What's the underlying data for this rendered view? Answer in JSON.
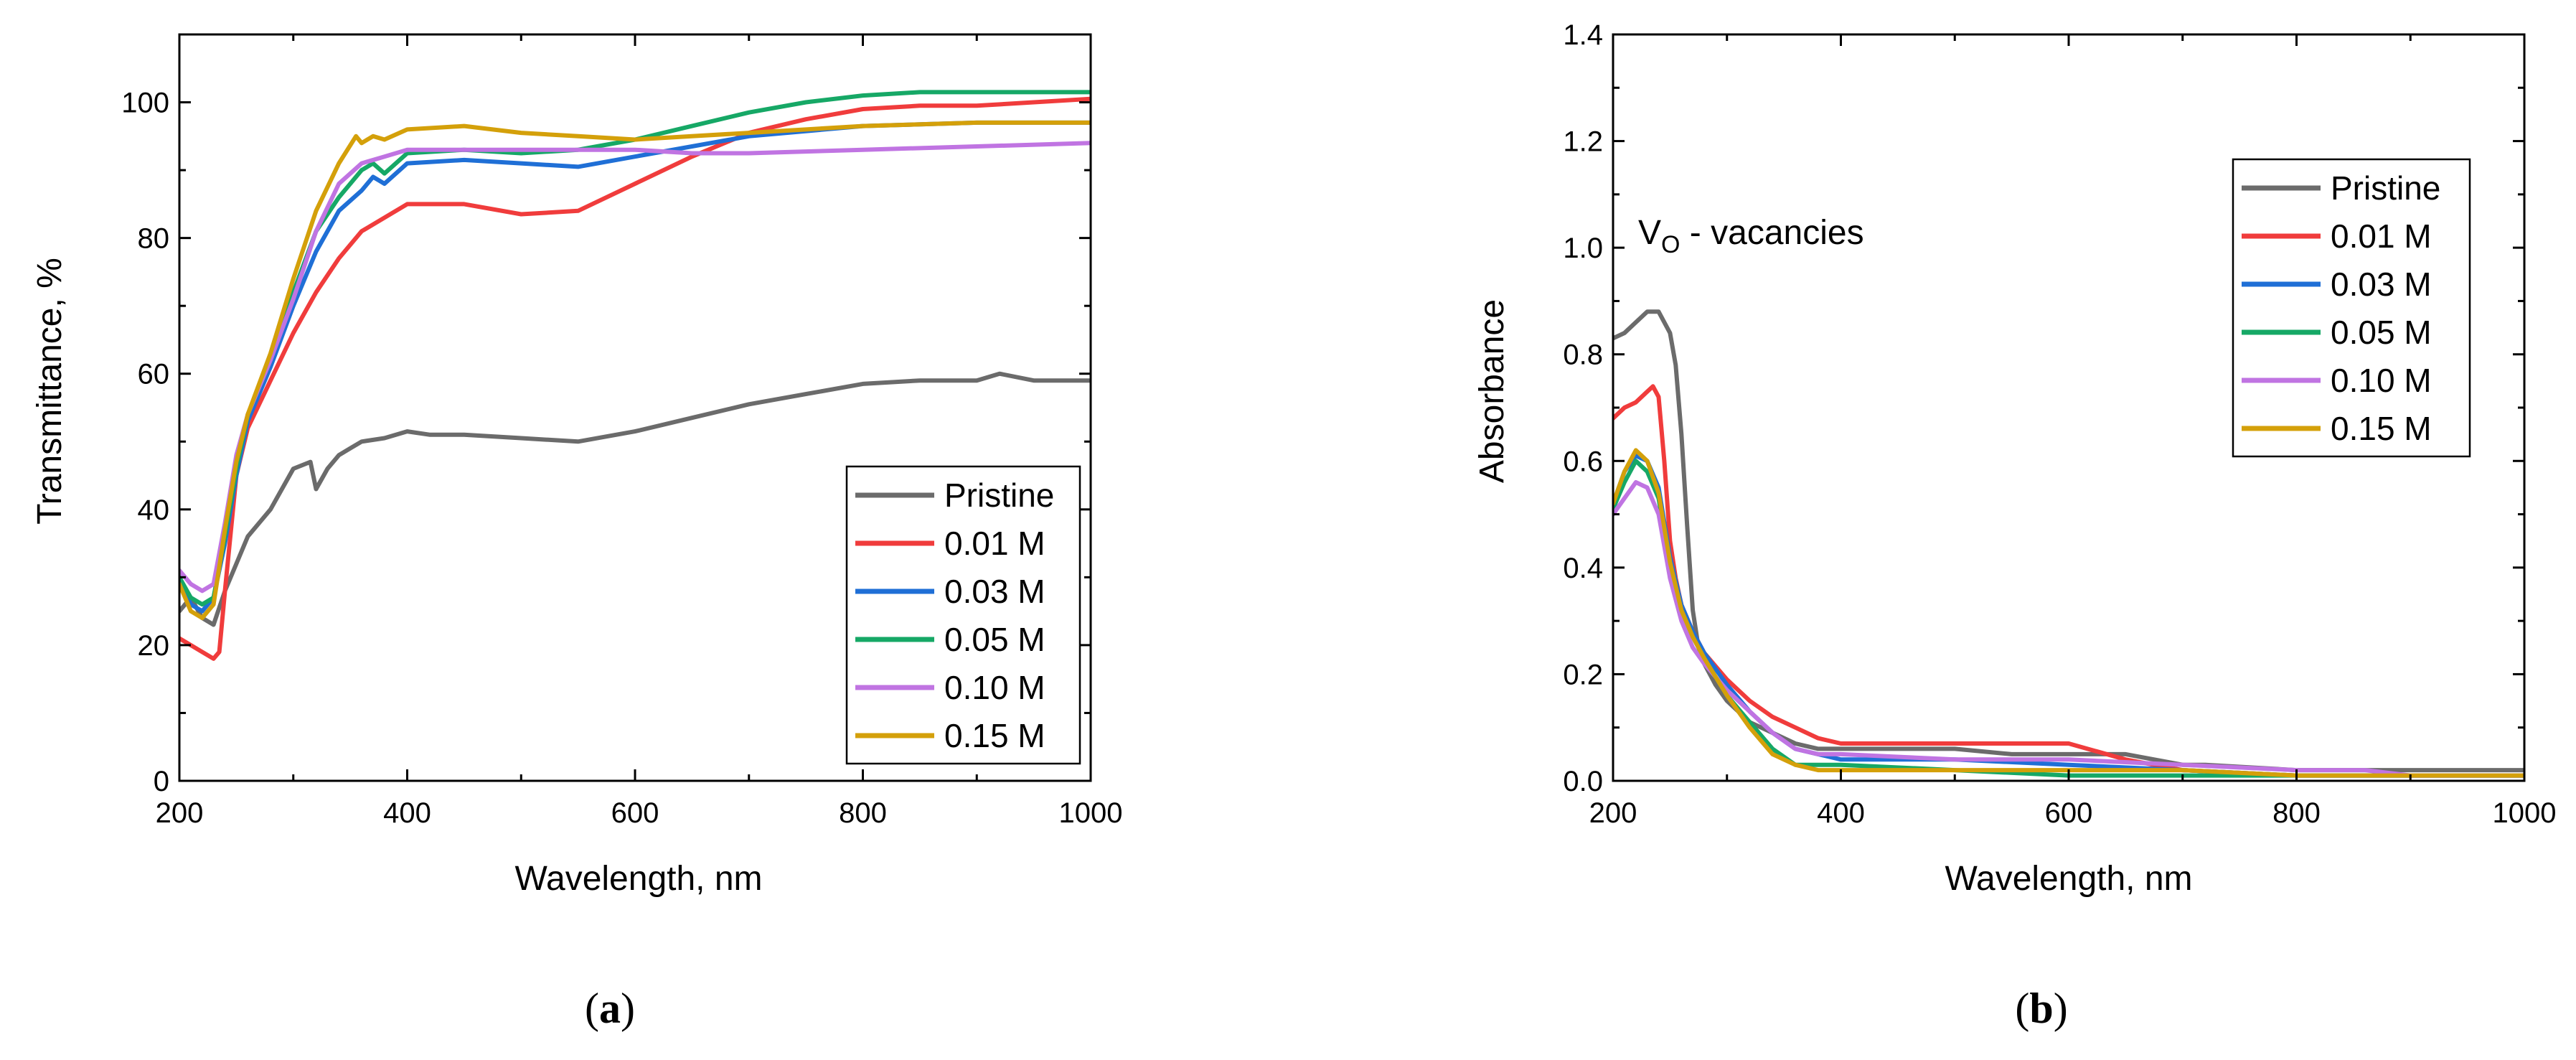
{
  "chart_data": [
    {
      "type": "line",
      "panel_label": "(a)",
      "panel_label_parts": {
        "open": "(",
        "letter": "a",
        "close": ")"
      },
      "title": "",
      "xlabel": "Wavelength, nm",
      "ylabel": "Transmittance, %",
      "xlim": [
        200,
        1000
      ],
      "ylim": [
        0,
        110
      ],
      "xticks": [
        "200",
        "400",
        "600",
        "800",
        "1000"
      ],
      "yticks": [
        "0",
        "20",
        "40",
        "60",
        "80",
        "100"
      ],
      "legend_position": "bottom-right",
      "series": [
        {
          "name": "Pristine",
          "color": "#6b6b6b",
          "x": [
            200,
            210,
            220,
            230,
            240,
            250,
            260,
            280,
            300,
            315,
            320,
            330,
            340,
            350,
            360,
            380,
            400,
            420,
            450,
            500,
            550,
            600,
            650,
            700,
            750,
            800,
            850,
            900,
            920,
            950,
            1000
          ],
          "y": [
            25,
            27,
            24,
            23,
            28,
            32,
            36,
            40,
            46,
            47,
            43,
            46,
            48,
            49,
            50,
            50.5,
            51.5,
            51,
            51,
            50.5,
            50,
            51.5,
            53.5,
            55.5,
            57,
            58.5,
            59,
            59,
            60,
            59,
            59
          ]
        },
        {
          "name": "0.01 M",
          "color": "#f03c3c",
          "x": [
            200,
            210,
            220,
            230,
            235,
            240,
            250,
            260,
            280,
            300,
            320,
            340,
            360,
            380,
            400,
            420,
            450,
            500,
            550,
            600,
            650,
            700,
            750,
            800,
            850,
            900,
            950,
            1000
          ],
          "y": [
            21,
            20,
            19,
            18,
            19,
            28,
            45,
            52,
            59,
            66,
            72,
            77,
            81,
            83,
            85,
            85,
            85,
            83.5,
            84,
            88,
            92,
            95.5,
            97.5,
            99,
            99.5,
            99.5,
            100,
            100.5
          ]
        },
        {
          "name": "0.03 M",
          "color": "#1f6fd6",
          "x": [
            200,
            210,
            220,
            230,
            240,
            250,
            260,
            280,
            300,
            320,
            340,
            360,
            370,
            380,
            400,
            450,
            500,
            550,
            600,
            650,
            700,
            800,
            900,
            1000
          ],
          "y": [
            30,
            26,
            25,
            27,
            35,
            45,
            53,
            61,
            70,
            78,
            84,
            87,
            89,
            88,
            91,
            91.5,
            91,
            90.5,
            92,
            93.5,
            95,
            96.5,
            97,
            97
          ]
        },
        {
          "name": "0.05 M",
          "color": "#16a866",
          "x": [
            200,
            210,
            220,
            230,
            240,
            250,
            260,
            280,
            300,
            320,
            340,
            360,
            370,
            380,
            400,
            450,
            500,
            550,
            600,
            650,
            700,
            750,
            800,
            850,
            900,
            1000
          ],
          "y": [
            30,
            27,
            26,
            27,
            36,
            46,
            54,
            62,
            72,
            81,
            86,
            90,
            91,
            89.5,
            92.5,
            93,
            92.5,
            93,
            94.5,
            96.5,
            98.5,
            100,
            101,
            101.5,
            101.5,
            101.5
          ]
        },
        {
          "name": "0.10 M",
          "color": "#c074e2",
          "x": [
            200,
            210,
            220,
            230,
            240,
            250,
            260,
            270,
            280,
            300,
            320,
            340,
            360,
            380,
            400,
            450,
            500,
            550,
            600,
            650,
            700,
            800,
            900,
            1000
          ],
          "y": [
            31,
            29,
            28,
            29,
            38,
            48,
            54,
            58,
            62,
            71,
            81,
            88,
            91,
            92,
            93,
            93,
            93,
            93,
            93,
            92.5,
            92.5,
            93,
            93.5,
            94
          ]
        },
        {
          "name": "0.15 M",
          "color": "#d4a00a",
          "x": [
            200,
            210,
            220,
            230,
            240,
            250,
            260,
            280,
            300,
            320,
            340,
            355,
            360,
            370,
            380,
            400,
            450,
            500,
            550,
            600,
            650,
            700,
            800,
            900,
            1000
          ],
          "y": [
            29,
            25,
            24,
            26,
            37,
            47,
            54,
            63,
            74,
            84,
            91,
            95,
            94,
            95,
            94.5,
            96,
            96.5,
            95.5,
            95,
            94.5,
            95,
            95.5,
            96.5,
            97,
            97
          ]
        }
      ]
    },
    {
      "type": "line",
      "panel_label": "(b)",
      "panel_label_parts": {
        "open": "(",
        "letter": "b",
        "close": ")"
      },
      "title": "",
      "xlabel": "Wavelength, nm",
      "ylabel": "Absorbance",
      "xlim": [
        200,
        1000
      ],
      "ylim": [
        0,
        1.4
      ],
      "xticks": [
        "200",
        "400",
        "600",
        "800",
        "1000"
      ],
      "yticks": [
        "0.0",
        "0.2",
        "0.4",
        "0.6",
        "0.8",
        "1.0",
        "1.2",
        "1.4"
      ],
      "annotation": {
        "text_main": "V",
        "text_sub": "O",
        "text_rest": " - vacancies",
        "full": "VO - vacancies"
      },
      "legend_position": "top-right",
      "series": [
        {
          "name": "Pristine",
          "color": "#6b6b6b",
          "x": [
            200,
            210,
            220,
            230,
            240,
            250,
            255,
            260,
            265,
            270,
            275,
            280,
            290,
            300,
            320,
            340,
            360,
            380,
            400,
            450,
            500,
            550,
            600,
            650,
            700,
            720,
            800,
            900,
            1000
          ],
          "y": [
            0.83,
            0.84,
            0.86,
            0.88,
            0.88,
            0.84,
            0.78,
            0.65,
            0.48,
            0.32,
            0.25,
            0.22,
            0.18,
            0.15,
            0.11,
            0.09,
            0.07,
            0.06,
            0.06,
            0.06,
            0.06,
            0.05,
            0.05,
            0.05,
            0.03,
            0.03,
            0.02,
            0.02,
            0.02
          ]
        },
        {
          "name": "0.01 M",
          "color": "#f03c3c",
          "x": [
            200,
            210,
            220,
            230,
            235,
            240,
            245,
            250,
            255,
            260,
            270,
            280,
            300,
            320,
            340,
            360,
            380,
            400,
            440,
            500,
            600,
            650,
            700,
            800,
            900,
            1000
          ],
          "y": [
            0.68,
            0.7,
            0.71,
            0.73,
            0.74,
            0.72,
            0.6,
            0.45,
            0.38,
            0.33,
            0.28,
            0.24,
            0.19,
            0.15,
            0.12,
            0.1,
            0.08,
            0.07,
            0.07,
            0.07,
            0.07,
            0.04,
            0.02,
            0.01,
            0.01,
            0.01
          ]
        },
        {
          "name": "0.03 M",
          "color": "#1f6fd6",
          "x": [
            200,
            210,
            220,
            230,
            240,
            250,
            260,
            270,
            280,
            300,
            320,
            340,
            360,
            380,
            400,
            450,
            500,
            600,
            700,
            800,
            1000
          ],
          "y": [
            0.52,
            0.58,
            0.61,
            0.6,
            0.55,
            0.42,
            0.33,
            0.28,
            0.24,
            0.18,
            0.13,
            0.09,
            0.06,
            0.05,
            0.04,
            0.04,
            0.04,
            0.03,
            0.02,
            0.01,
            0.01
          ]
        },
        {
          "name": "0.05 M",
          "color": "#16a866",
          "x": [
            200,
            210,
            220,
            230,
            240,
            250,
            260,
            270,
            280,
            300,
            320,
            340,
            360,
            380,
            400,
            500,
            600,
            700,
            800,
            1000
          ],
          "y": [
            0.51,
            0.56,
            0.6,
            0.58,
            0.53,
            0.4,
            0.32,
            0.27,
            0.23,
            0.16,
            0.11,
            0.06,
            0.03,
            0.03,
            0.03,
            0.02,
            0.01,
            0.01,
            0.01,
            0.01
          ]
        },
        {
          "name": "0.10 M",
          "color": "#c074e2",
          "x": [
            200,
            210,
            220,
            230,
            240,
            250,
            260,
            270,
            280,
            300,
            320,
            340,
            360,
            380,
            400,
            500,
            600,
            700,
            800,
            860,
            900,
            1000
          ],
          "y": [
            0.5,
            0.53,
            0.56,
            0.55,
            0.5,
            0.38,
            0.3,
            0.25,
            0.22,
            0.17,
            0.13,
            0.09,
            0.06,
            0.05,
            0.05,
            0.04,
            0.04,
            0.03,
            0.02,
            0.02,
            0.01,
            0.01
          ]
        },
        {
          "name": "0.15 M",
          "color": "#d4a00a",
          "x": [
            200,
            210,
            220,
            230,
            240,
            250,
            260,
            270,
            280,
            300,
            320,
            340,
            360,
            380,
            400,
            500,
            600,
            700,
            800,
            850,
            1000
          ],
          "y": [
            0.52,
            0.58,
            0.62,
            0.6,
            0.54,
            0.41,
            0.32,
            0.27,
            0.23,
            0.16,
            0.1,
            0.05,
            0.03,
            0.02,
            0.02,
            0.02,
            0.02,
            0.02,
            0.01,
            0.01,
            0.01
          ]
        }
      ]
    }
  ]
}
